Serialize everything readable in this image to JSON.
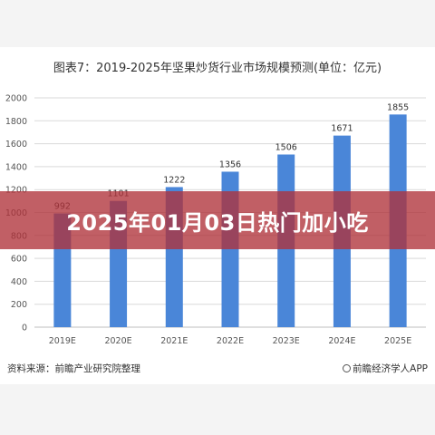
{
  "chart_data": {
    "type": "bar",
    "title": "图表7：2019-2025年坚果炒货行业市场规模预测(单位：亿元)",
    "categories": [
      "2019E",
      "2020E",
      "2021E",
      "2022E",
      "2023E",
      "2024E",
      "2025E"
    ],
    "values": [
      992,
      1101,
      1222,
      1356,
      1506,
      1671,
      1855
    ],
    "yticks": [
      "0",
      "200",
      "400",
      "600",
      "800",
      "1000",
      "1200",
      "1400",
      "1600",
      "1800",
      "2000"
    ],
    "ylim": [
      0,
      2000
    ],
    "grid": true,
    "bar_color": "#4a86d8"
  },
  "source": {
    "left": "资料来源：前瞻产业研究院整理",
    "right": "前瞻经济学人APP"
  },
  "banner": {
    "text": "2025年01月03日热门加小吃",
    "color": "#af323a"
  }
}
